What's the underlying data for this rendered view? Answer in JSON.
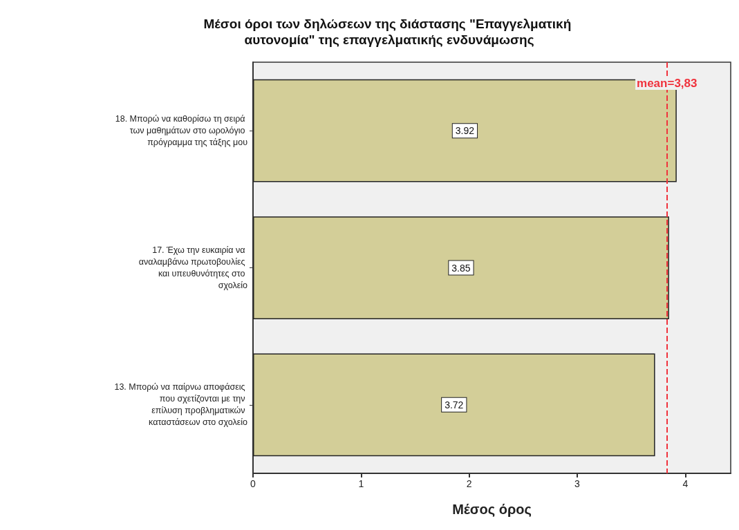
{
  "chart_data": {
    "type": "bar",
    "orientation": "horizontal",
    "title": "Μέσοι όροι των δηλώσεων της διάστασης \"Επαγγελματική αυτονομία\" της επαγγελματικής ενδυνάμωσης",
    "xlabel": "Μέσος όρος",
    "categories": [
      "18. Μπορώ να καθορίσω τη σειρά των μαθημάτων στο ωρολόγιο πρόγραμμα της τάξης μου",
      "17. Έχω την ευκαιρία να αναλαμβάνω πρωτοβουλίες και υπευθυνότητες στο σχολείο",
      "13. Μπορώ να παίρνω αποφάσεις που σχετίζονται με την επίλυση προβληματικών καταστάσεων στο σχολείο"
    ],
    "values": [
      3.92,
      3.85,
      3.72
    ],
    "color": "#d3ce98",
    "data_labels": true,
    "xlim": [
      0,
      4.42
    ],
    "xticks": [
      0,
      1,
      2,
      3,
      4
    ],
    "ref_lines": [
      {
        "axis": "x",
        "value": 3.83,
        "label": "mean=3,83",
        "color": "#f0323c",
        "line_style": "dashed"
      }
    ],
    "grid": false
  }
}
